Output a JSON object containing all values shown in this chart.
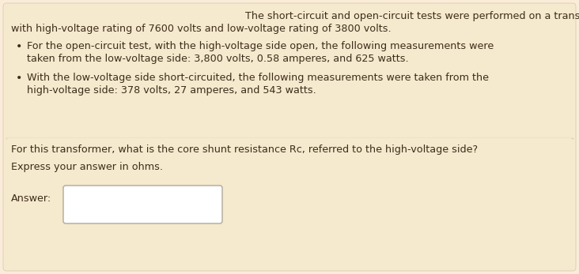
{
  "bg_color": "#faecd8",
  "top_section_color": "#f5e9ce",
  "bottom_section_color": "#f5e9ce",
  "divider_color": "#d4c9b0",
  "text_color": "#3d2e1a",
  "answer_box_border": "#b0a898",
  "answer_box_fill": "#ffffff",
  "title_line1": "The short-circuit and open-circuit tests were performed on a transformer,",
  "title_line2": "with high-voltage rating of 7600 volts and low-voltage rating of 3800 volts.",
  "bullet1_line1": "For the open-circuit test, with the high-voltage side open, the following measurements were",
  "bullet1_line2": "taken from the low-voltage side: 3,800 volts, 0.58 amperes, and 625 watts.",
  "bullet2_line1": "With the low-voltage side short-circuited, the following measurements were taken from the",
  "bullet2_line2": "high-voltage side: 378 volts, 27 amperes, and 543 watts.",
  "question_line1": "For this transformer, what is the core shunt resistance Rc, referred to the high-voltage side?",
  "question_line2": "Express your answer in ohms.",
  "answer_label": "Answer:",
  "font_size": 9.2
}
